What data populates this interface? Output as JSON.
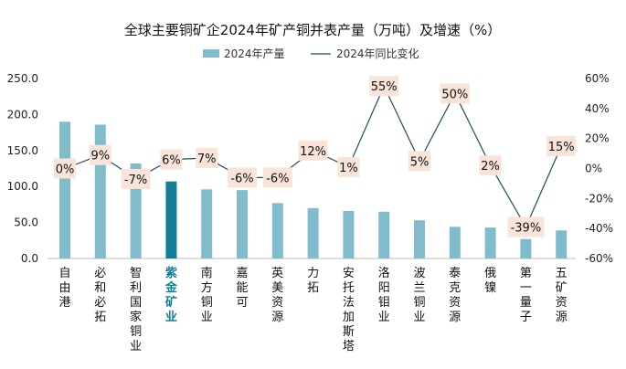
{
  "chart_data": {
    "type": "bar+line",
    "title": "全球主要铜矿企2024年矿产铜并表产量（万吨）及增速（%）",
    "categories": [
      "自由港",
      "必和必拓",
      "智利国家铜业",
      "紫金矿业",
      "南方铜业",
      "嘉能可",
      "英美资源",
      "力拓",
      "安托法加斯塔",
      "洛阳钼业",
      "波兰铜业",
      "泰克资源",
      "俄镍",
      "第一量子",
      "五矿资源"
    ],
    "highlight_category": "紫金矿业",
    "series": [
      {
        "name": "2024年产量",
        "type": "bar",
        "axis": "left",
        "values": [
          190,
          186,
          132,
          107,
          96,
          95,
          77,
          70,
          66,
          65,
          53,
          44,
          43,
          27,
          39
        ]
      },
      {
        "name": "2024年同比变化",
        "type": "line",
        "axis": "right",
        "values": [
          0,
          9,
          -7,
          6,
          7,
          -6,
          -6,
          12,
          1,
          55,
          5,
          50,
          2,
          -39,
          15
        ],
        "data_labels": [
          "0%",
          "9%",
          "-7%",
          "6%",
          "7%",
          "-6%",
          "-6%",
          "12%",
          "1%",
          "55%",
          "5%",
          "50%",
          "2%",
          "-39%",
          "15%"
        ]
      }
    ],
    "left_axis": {
      "range": [
        0,
        250
      ],
      "ticks": [
        "0.0",
        "50.0",
        "100.0",
        "150.0",
        "200.0",
        "250.0"
      ]
    },
    "right_axis": {
      "range": [
        -60,
        60
      ],
      "ticks": [
        "-60%",
        "-40%",
        "-20%",
        "0%",
        "20%",
        "40%",
        "60%"
      ]
    },
    "grid": false,
    "legend": "top",
    "colors": {
      "bar": "#80bccb",
      "bar_highlight": "#0f7e96",
      "line": "#1f4e5f",
      "label_bg": "#f8e4d8",
      "highlight_text": "#0f7e96"
    }
  }
}
